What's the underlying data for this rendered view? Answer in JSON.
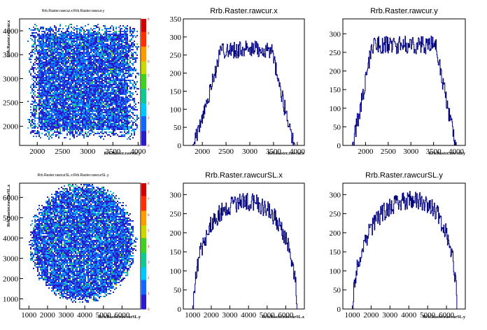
{
  "page": {
    "background": "#ffffff"
  },
  "chart_data": [
    {
      "type": "heatmap",
      "title": "Rrb.Raster.rawcur.x:Rrb.Raster.rawcur.y",
      "xlabel": "Rrb.Raster.rawcur.y",
      "ylabel": "Rrb.Raster.rawcur.x",
      "xlim": [
        1650,
        4050
      ],
      "ylim": [
        1600,
        4250
      ],
      "xticks": [
        2000,
        2500,
        3000,
        3500,
        4000
      ],
      "yticks": [
        2000,
        2500,
        3000,
        3500,
        4000
      ],
      "xtick_labels": [
        "2000",
        "2500",
        "3000",
        "3500",
        "4000"
      ],
      "ytick_labels": [
        "2000",
        "2500",
        "3000",
        "3500",
        "4000"
      ],
      "shape": "rectangle",
      "region": {
        "x": [
          1850,
          3950
        ],
        "y": [
          1800,
          4100
        ]
      },
      "z_range": [
        0,
        9
      ],
      "palette_labels": [
        "0",
        "1",
        "2",
        "3",
        "4",
        "5",
        "6",
        "7",
        "8",
        "9"
      ],
      "colors": [
        "#2a1bc8",
        "#1565ff",
        "#00c8ff",
        "#10c890",
        "#40d020",
        "#c8d800",
        "#ff9a00",
        "#ff3000",
        "#d00000"
      ],
      "dominant_color": "#1e6ae8"
    },
    {
      "type": "histogram",
      "title": "Rrb.Raster.rawcur.x",
      "xlabel": "Rrb.Raster.rawcur.x",
      "xlim": [
        1600,
        4150
      ],
      "ylim": [
        0,
        350
      ],
      "xticks": [
        2000,
        2500,
        3000,
        3500,
        4000
      ],
      "xtick_labels": [
        "2000",
        "2500",
        "3000",
        "3500",
        "4000"
      ],
      "yticks": [
        0,
        50,
        100,
        150,
        200,
        250,
        300,
        350
      ],
      "ytick_labels": [
        "0",
        "50",
        "100",
        "150",
        "200",
        "250",
        "300",
        "350"
      ],
      "x_range": [
        1800,
        3950
      ],
      "plateau": [
        2400,
        3450
      ],
      "level": 265,
      "color": "#000080"
    },
    {
      "type": "histogram",
      "title": "Rrb.Raster.rawcur.y",
      "xlabel": "Rrb.Raster.rawcur.y",
      "xlim": [
        1500,
        4200
      ],
      "ylim": [
        0,
        340
      ],
      "xticks": [
        2000,
        2500,
        3000,
        3500,
        4000
      ],
      "xtick_labels": [
        "2000",
        "2500",
        "3000",
        "3500",
        "4000"
      ],
      "yticks": [
        0,
        50,
        100,
        150,
        200,
        250,
        300
      ],
      "ytick_labels": [
        "0",
        "50",
        "100",
        "150",
        "200",
        "250",
        "300"
      ],
      "x_range": [
        1700,
        4000
      ],
      "plateau": [
        2150,
        3550
      ],
      "level": 270,
      "color": "#000080"
    },
    {
      "type": "heatmap",
      "title": "Rrb.Raster.rawcurSL.x:Rrb.Raster.rawcurSL.y",
      "xlabel": "Rrb.Raster.rawcurSL.y",
      "ylabel": "Rrb.Raster.rawcurSL.x",
      "xlim": [
        500,
        7000
      ],
      "ylim": [
        500,
        6700
      ],
      "xticks": [
        1000,
        2000,
        3000,
        4000,
        5000,
        6000
      ],
      "yticks": [
        1000,
        2000,
        3000,
        4000,
        5000,
        6000
      ],
      "xtick_labels": [
        "1000",
        "2000",
        "3000",
        "4000",
        "5000",
        "6000"
      ],
      "ytick_labels": [
        "1000",
        "2000",
        "3000",
        "4000",
        "5000",
        "6000"
      ],
      "shape": "ellipse",
      "region": {
        "cx": 3850,
        "cy": 3800,
        "rx": 2850,
        "ry": 2950
      },
      "z_range": [
        0,
        8
      ],
      "palette_labels": [
        "0",
        "1",
        "2",
        "3",
        "4",
        "5",
        "6",
        "7",
        "8"
      ],
      "colors": [
        "#2a1bc8",
        "#1565ff",
        "#00c8ff",
        "#10c890",
        "#40d020",
        "#c8d800",
        "#ff9a00",
        "#ff3000",
        "#d00000"
      ],
      "dominant_color": "#1e6ae8"
    },
    {
      "type": "histogram",
      "title": "Rrb.Raster.rawcurSL.x",
      "xlabel": "Rrb.Raster.rawcurSL.x",
      "xlim": [
        500,
        7000
      ],
      "ylim": [
        0,
        330
      ],
      "xticks": [
        1000,
        2000,
        3000,
        4000,
        5000,
        6000
      ],
      "xtick_labels": [
        "1000",
        "2000",
        "3000",
        "4000",
        "5000",
        "6000"
      ],
      "yticks": [
        0,
        50,
        100,
        150,
        200,
        250,
        300
      ],
      "ytick_labels": [
        "0",
        "50",
        "100",
        "150",
        "200",
        "250",
        "300"
      ],
      "x_range": [
        1050,
        6600
      ],
      "peak": 3850,
      "level": 280,
      "color": "#000080"
    },
    {
      "type": "histogram",
      "title": "Rrb.Raster.rawcurSL.y",
      "xlabel": "Rrb.Raster.rawcurSL.y",
      "xlim": [
        500,
        7000
      ],
      "ylim": [
        0,
        330
      ],
      "xticks": [
        1000,
        2000,
        3000,
        4000,
        5000,
        6000
      ],
      "xtick_labels": [
        "1000",
        "2000",
        "3000",
        "4000",
        "5000",
        "6000"
      ],
      "yticks": [
        0,
        50,
        100,
        150,
        200,
        250,
        300
      ],
      "ytick_labels": [
        "0",
        "50",
        "100",
        "150",
        "200",
        "250",
        "300"
      ],
      "x_range": [
        1050,
        6550
      ],
      "peak": 4300,
      "level": 285,
      "color": "#000080"
    }
  ]
}
